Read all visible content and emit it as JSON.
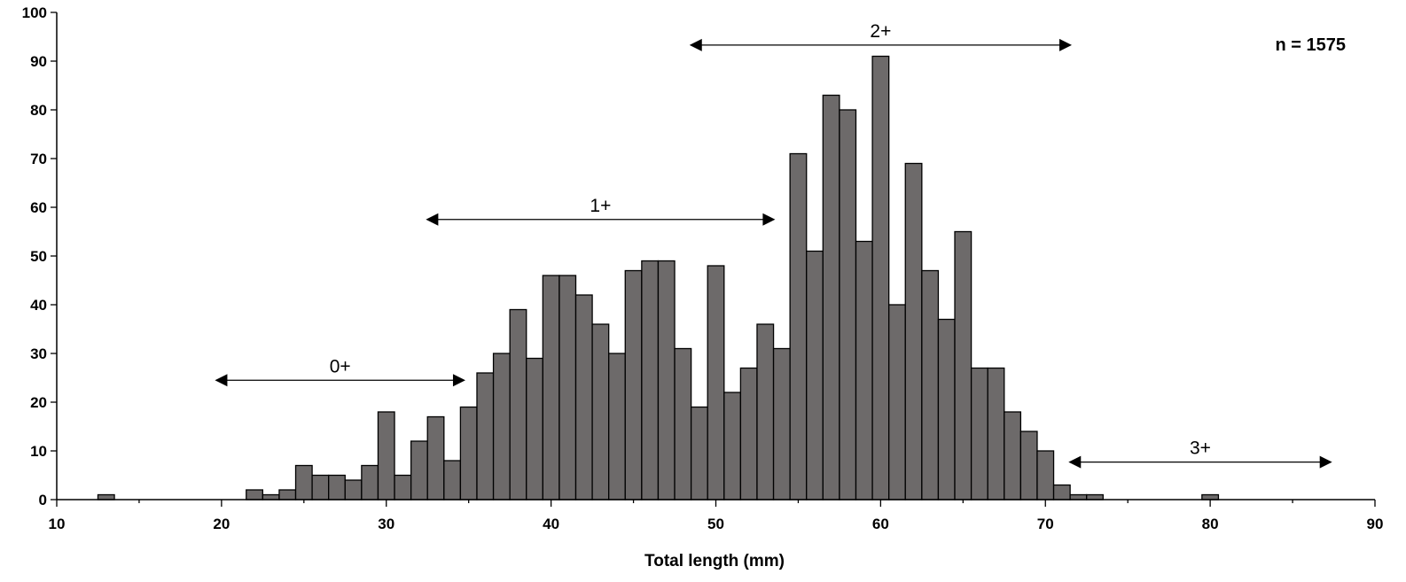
{
  "chart_data": {
    "type": "bar",
    "title": "",
    "xlabel": "Total length (mm)",
    "ylabel": "",
    "xlim": [
      10,
      90
    ],
    "ylim": [
      0,
      100
    ],
    "xticks": [
      10,
      20,
      30,
      40,
      50,
      60,
      70,
      80,
      90
    ],
    "yticks": [
      0,
      10,
      20,
      30,
      40,
      50,
      60,
      70,
      80,
      90,
      100
    ],
    "bin_width": 1,
    "x": [
      13,
      22,
      23,
      24,
      25,
      26,
      27,
      28,
      29,
      30,
      31,
      32,
      33,
      34,
      35,
      36,
      37,
      38,
      39,
      40,
      41,
      42,
      43,
      44,
      45,
      46,
      47,
      48,
      49,
      50,
      51,
      52,
      53,
      54,
      55,
      56,
      57,
      58,
      59,
      60,
      61,
      62,
      63,
      64,
      65,
      66,
      67,
      68,
      69,
      70,
      71,
      72,
      73,
      80
    ],
    "values": [
      1,
      2,
      1,
      2,
      7,
      5,
      5,
      4,
      7,
      18,
      5,
      12,
      17,
      8,
      19,
      26,
      30,
      39,
      29,
      46,
      46,
      42,
      36,
      30,
      47,
      49,
      49,
      31,
      19,
      48,
      22,
      27,
      36,
      31,
      71,
      51,
      83,
      80,
      53,
      91,
      40,
      69,
      47,
      37,
      55,
      27,
      27,
      18,
      14,
      10,
      3,
      1,
      1,
      1
    ],
    "grid": false,
    "legend": "none",
    "bar_color": "#6d6a6a",
    "annotations": [
      {
        "label": "0+",
        "x_start": 19.6,
        "x_end": 34.8,
        "y": 24.5
      },
      {
        "label": "1+",
        "x_start": 32.4,
        "x_end": 53.6,
        "y": 57.5
      },
      {
        "label": "2+",
        "x_start": 48.4,
        "x_end": 71.6,
        "y": 93.3
      },
      {
        "label": "3+",
        "x_start": 71.4,
        "x_end": 87.4,
        "y": 7.7
      }
    ],
    "note": "n = 1575"
  }
}
